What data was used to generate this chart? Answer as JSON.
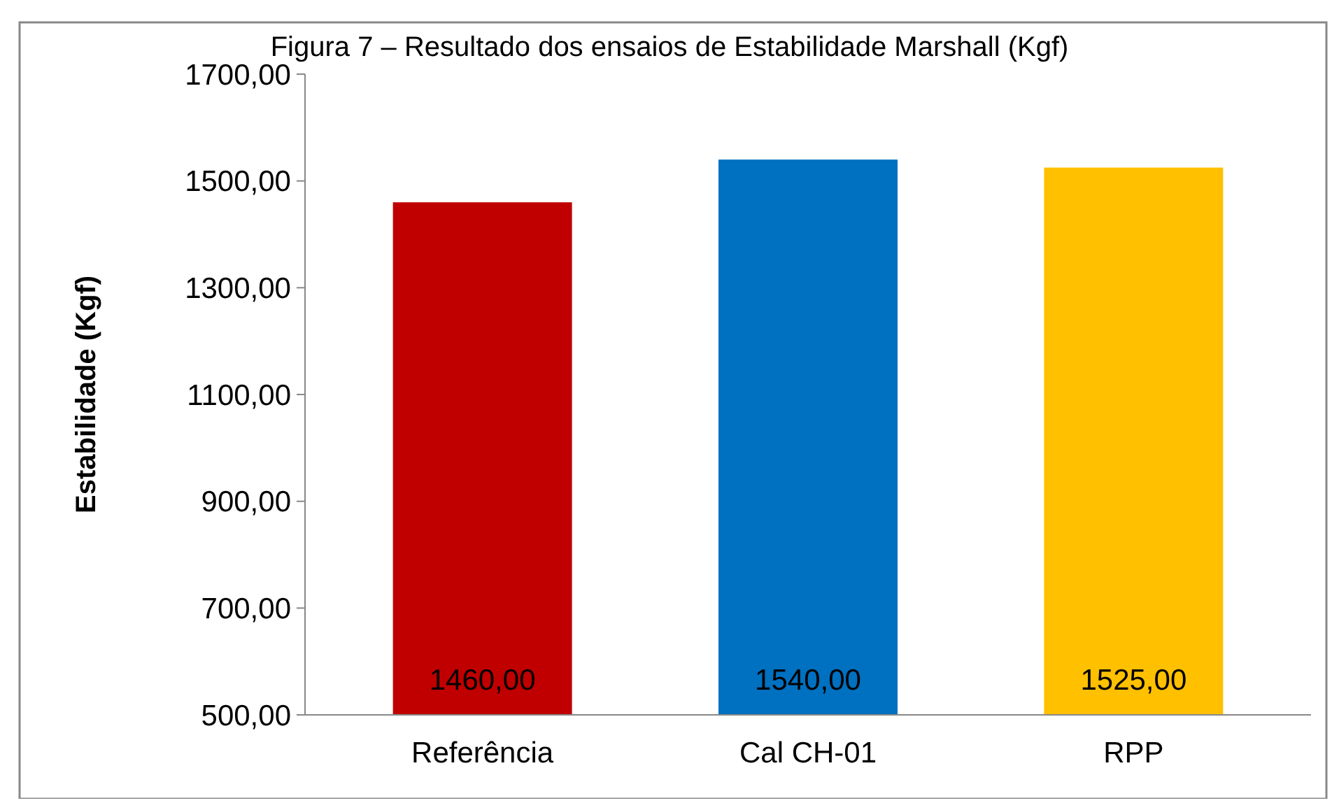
{
  "chart_data": {
    "type": "bar",
    "title": "Figura 7 – Resultado dos ensaios de Estabilidade Marshall (Kgf)",
    "ylabel": "Estabilidade (Kgf)",
    "categories": [
      "Referência",
      "Cal CH-01",
      "RPP"
    ],
    "values": [
      1460,
      1540,
      1525
    ],
    "colors": [
      "#c00000",
      "#0070c0",
      "#ffc000"
    ],
    "value_labels": [
      "1460,00",
      "1540,00",
      "1525,00"
    ],
    "ylim": [
      500,
      1700
    ],
    "yticks": [
      {
        "value": 500,
        "label": "500,00"
      },
      {
        "value": 700,
        "label": "700,00"
      },
      {
        "value": 900,
        "label": "900,00"
      },
      {
        "value": 1100,
        "label": "1100,00"
      },
      {
        "value": 1300,
        "label": "1300,00"
      },
      {
        "value": 1500,
        "label": "1500,00"
      },
      {
        "value": 1700,
        "label": "1700,00"
      }
    ],
    "grid": false
  }
}
